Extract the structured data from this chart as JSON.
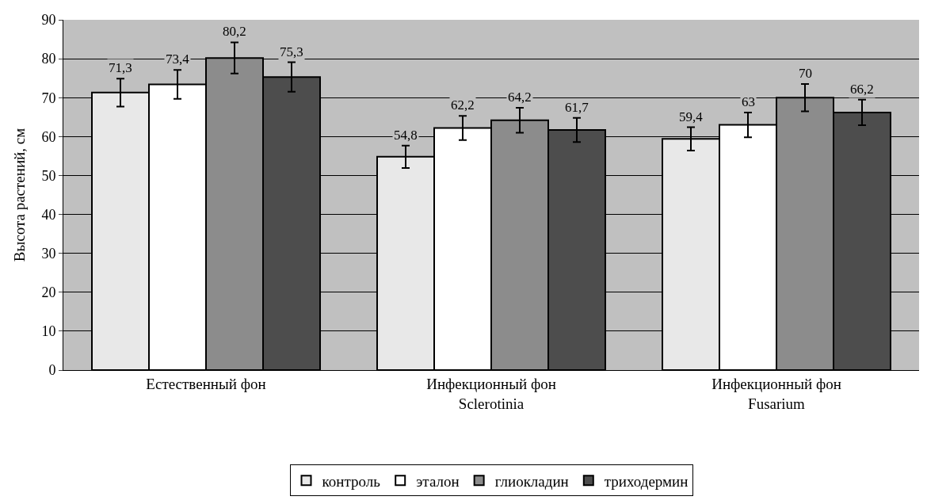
{
  "chart_data": {
    "type": "bar",
    "ylabel": "Высота растений, см",
    "categories": [
      "Естественный фон",
      "Инфекционный фон\nSclerotinia",
      "Инфекционный фон\nFusarium"
    ],
    "series": [
      {
        "name": "контроль",
        "color": "#e8e8e8",
        "values": [
          71.3,
          54.8,
          59.4
        ],
        "errors": [
          3.6,
          2.9,
          3.0
        ],
        "value_labels": [
          "71,3",
          "54,8",
          "59,4"
        ]
      },
      {
        "name": "эталон",
        "color": "#ffffff",
        "values": [
          73.4,
          62.2,
          63
        ],
        "errors": [
          3.7,
          3.1,
          3.2
        ],
        "value_labels": [
          "73,4",
          "62,2",
          "63"
        ]
      },
      {
        "name": "глиокладин",
        "color": "#8c8c8c",
        "values": [
          80.2,
          64.2,
          70
        ],
        "errors": [
          4.0,
          3.2,
          3.5
        ],
        "value_labels": [
          "80,2",
          "64,2",
          "70"
        ]
      },
      {
        "name": "триходермин",
        "color": "#4d4d4d",
        "values": [
          75.3,
          61.7,
          66.2
        ],
        "errors": [
          3.8,
          3.1,
          3.3
        ],
        "value_labels": [
          "75,3",
          "61,7",
          "66,2"
        ]
      }
    ],
    "ylim": [
      0,
      90
    ],
    "yticks": [
      0,
      10,
      20,
      30,
      40,
      50,
      60,
      70,
      80,
      90
    ],
    "grid": "y",
    "legend": "bottom"
  }
}
